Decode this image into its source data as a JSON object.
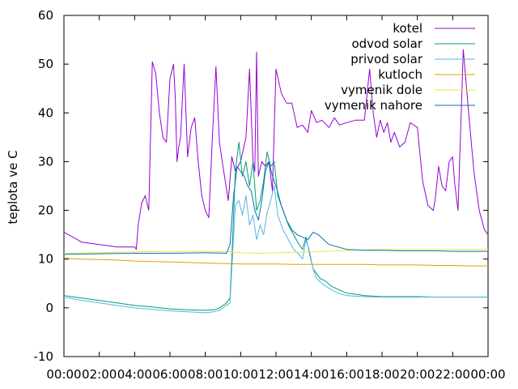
{
  "chart_data": {
    "type": "line",
    "title": "",
    "xlabel": "",
    "ylabel": "teplota ve C",
    "xlim": [
      0,
      24
    ],
    "ylim": [
      -10,
      60
    ],
    "grid": false,
    "legend_position": "top-right",
    "x_tick_labels": [
      "00:00",
      "02:00",
      "04:00",
      "06:00",
      "08:00",
      "10:00",
      "12:00",
      "14:00",
      "16:00",
      "18:00",
      "20:00",
      "22:00",
      "00:00"
    ],
    "y_ticks": [
      -10,
      0,
      10,
      20,
      30,
      40,
      50,
      60
    ],
    "series": [
      {
        "name": "kotel",
        "color": "#9400d3",
        "x": [
          0,
          0.5,
          1,
          2,
          3,
          4,
          4.1,
          4.2,
          4.4,
          4.6,
          4.8,
          5.0,
          5.2,
          5.4,
          5.6,
          5.8,
          6.0,
          6.2,
          6.3,
          6.4,
          6.5,
          6.6,
          6.8,
          7.0,
          7.2,
          7.4,
          7.6,
          7.8,
          8.0,
          8.2,
          8.4,
          8.6,
          8.8,
          9.0,
          9.3,
          9.5,
          9.7,
          10.0,
          10.3,
          10.5,
          10.7,
          10.8,
          10.9,
          11.0,
          11.2,
          11.4,
          11.6,
          11.8,
          12.0,
          12.3,
          12.6,
          12.9,
          13.2,
          13.5,
          13.8,
          14.0,
          14.3,
          14.6,
          15.0,
          15.3,
          15.6,
          16.0,
          16.5,
          17.0,
          17.3,
          17.5,
          17.7,
          17.9,
          18.1,
          18.3,
          18.5,
          18.7,
          19.0,
          19.3,
          19.6,
          20.0,
          20.3,
          20.6,
          20.9,
          21.0,
          21.2,
          21.4,
          21.6,
          21.8,
          22.0,
          22.1,
          22.3,
          22.6,
          22.9,
          23.2,
          23.5,
          23.8,
          24
        ],
        "values": [
          15.5,
          14.5,
          13.5,
          13,
          12.5,
          12.5,
          12.0,
          17.0,
          21.5,
          23.0,
          20.0,
          50.5,
          48.0,
          40.0,
          35.0,
          34.0,
          47.0,
          50.0,
          43.0,
          30.0,
          33.0,
          35.0,
          50.0,
          31.0,
          37.0,
          39.0,
          30.0,
          23.0,
          20.0,
          18.5,
          35.0,
          49.5,
          34.0,
          29.0,
          22.0,
          31.0,
          28.0,
          30.0,
          35.0,
          49.0,
          30.0,
          28.0,
          52.5,
          27.0,
          30.0,
          29.0,
          30.0,
          24.0,
          49.0,
          44.0,
          42.0,
          42.0,
          37.0,
          37.5,
          36.0,
          40.5,
          38.0,
          38.5,
          37.0,
          39.0,
          37.5,
          38.0,
          38.5,
          38.5,
          49.0,
          40.0,
          35.0,
          38.5,
          36.0,
          38.0,
          34.0,
          36.0,
          33.0,
          34.0,
          38.0,
          37.0,
          26.0,
          21.0,
          20.0,
          22.0,
          29.0,
          25.0,
          24.0,
          30.0,
          31.0,
          26.0,
          20.0,
          53.0,
          40.0,
          28.0,
          20.0,
          16.0,
          15.0
        ],
        "x_note": "hours since 00:00"
      },
      {
        "name": "odvod solar",
        "color": "#009e73",
        "x": [
          0,
          1,
          2,
          3,
          4,
          5,
          6,
          7,
          8,
          8.5,
          8.8,
          9.0,
          9.2,
          9.4,
          9.5,
          9.7,
          9.9,
          10.1,
          10.3,
          10.5,
          10.7,
          10.9,
          11.1,
          11.3,
          11.5,
          11.7,
          11.9,
          12.1,
          12.4,
          12.7,
          13.0,
          13.3,
          13.5,
          13.7,
          13.9,
          14.1,
          14.3,
          14.5,
          14.8,
          15.1,
          15.4,
          15.7,
          16.0,
          16.5,
          17.0,
          17.5,
          18,
          19,
          20,
          21,
          22,
          23,
          24
        ],
        "values": [
          2.5,
          2.0,
          1.5,
          1.0,
          0.5,
          0.2,
          -0.2,
          -0.4,
          -0.5,
          -0.4,
          0.0,
          0.5,
          1.0,
          2.0,
          10.0,
          28.0,
          34.0,
          27.0,
          30.0,
          25.0,
          30.0,
          20.0,
          22.0,
          26.0,
          32.0,
          29.0,
          30.0,
          23.0,
          20.0,
          17.0,
          15.0,
          13.0,
          12.0,
          14.5,
          11.0,
          8.0,
          7.0,
          6.0,
          5.5,
          4.5,
          4.0,
          3.5,
          3.0,
          2.8,
          2.5,
          2.4,
          2.3,
          2.3,
          2.3,
          2.2,
          2.2,
          2.2,
          2.2
        ]
      },
      {
        "name": "privod solar",
        "color": "#56b4e9",
        "x": [
          0,
          1,
          2,
          3,
          4,
          5,
          6,
          7,
          7.5,
          8.0,
          8.5,
          8.8,
          9.0,
          9.2,
          9.4,
          9.5,
          9.7,
          9.9,
          10.1,
          10.3,
          10.5,
          10.7,
          10.9,
          11.1,
          11.3,
          11.5,
          11.7,
          11.9,
          12.1,
          12.4,
          12.7,
          13.0,
          13.3,
          13.5,
          13.7,
          13.9,
          14.1,
          14.3,
          14.6,
          15.0,
          15.5,
          16.0,
          17.0,
          18,
          19,
          20,
          21,
          22,
          23,
          24
        ],
        "values": [
          2.2,
          1.5,
          1.0,
          0.5,
          0.0,
          -0.3,
          -0.6,
          -0.8,
          -0.9,
          -1.0,
          -0.8,
          -0.5,
          0.0,
          0.5,
          1.0,
          8.0,
          21.0,
          22.0,
          19.0,
          23.0,
          17.0,
          19.0,
          14.0,
          17.0,
          15.0,
          19.5,
          22.0,
          25.0,
          19.0,
          16.0,
          14.0,
          12.0,
          11.0,
          10.0,
          14.0,
          11.5,
          8.0,
          6.0,
          5.0,
          4.0,
          3.0,
          2.5,
          2.3,
          2.2,
          2.2,
          2.2,
          2.2,
          2.2,
          2.2,
          2.2
        ]
      },
      {
        "name": "kutloch",
        "color": "#e69f00",
        "x": [
          0,
          1,
          2,
          3,
          4,
          5,
          6,
          7,
          8,
          9,
          10,
          11,
          12,
          13,
          14,
          15,
          16,
          17,
          18,
          19,
          20,
          21,
          22,
          23,
          24
        ],
        "values": [
          10.2,
          10.0,
          9.9,
          9.8,
          9.6,
          9.5,
          9.4,
          9.3,
          9.2,
          9.1,
          9.0,
          9.0,
          9.0,
          8.9,
          8.9,
          8.9,
          8.9,
          8.9,
          8.8,
          8.8,
          8.8,
          8.7,
          8.7,
          8.6,
          8.6
        ]
      },
      {
        "name": "vymenik dole",
        "color": "#f0e442",
        "x": [
          0,
          2,
          4,
          6,
          8,
          9.5,
          10,
          11,
          12,
          13,
          14,
          15,
          16,
          18,
          20,
          22,
          24
        ],
        "values": [
          11.2,
          11.3,
          11.5,
          11.6,
          11.6,
          11.5,
          11.3,
          11.2,
          11.3,
          11.4,
          11.5,
          11.6,
          11.8,
          12.0,
          12.0,
          12.0,
          12.0
        ],
        "values_note": ""
      },
      {
        "name": "vymenik nahore",
        "color": "#0072b2",
        "x": [
          0,
          2,
          4,
          6,
          8,
          9.2,
          9.4,
          9.6,
          9.8,
          10.0,
          10.2,
          10.4,
          10.6,
          10.8,
          11.0,
          11.2,
          11.4,
          11.6,
          11.8,
          12.0,
          12.3,
          12.6,
          12.9,
          13.2,
          13.5,
          13.8,
          14.1,
          14.4,
          14.7,
          15.0,
          15.5,
          16,
          17,
          18,
          19,
          20,
          21,
          22,
          23,
          24
        ],
        "values": [
          11.0,
          11.1,
          11.2,
          11.2,
          11.3,
          11.2,
          13.0,
          23.0,
          29.0,
          28.0,
          27.0,
          25.0,
          24.0,
          20.0,
          18.0,
          22.0,
          28.0,
          30.0,
          27.0,
          25.0,
          21.0,
          18.0,
          16.0,
          15.0,
          14.5,
          14.0,
          15.5,
          15.0,
          14.0,
          13.0,
          12.5,
          12.0,
          11.8,
          11.8,
          11.7,
          11.7,
          11.7,
          11.6,
          11.6,
          11.6
        ]
      }
    ]
  }
}
